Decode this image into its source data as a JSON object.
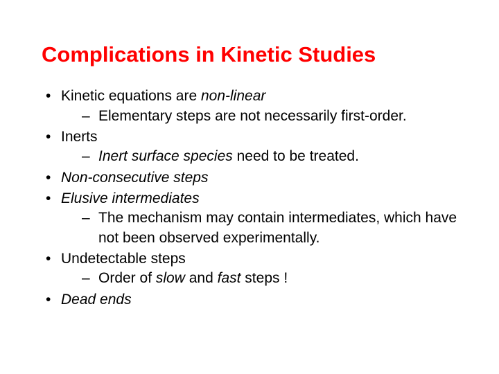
{
  "title_color": "#ff0000",
  "body_color": "#000000",
  "background_color": "#ffffff",
  "title_fontsize": 31,
  "body_fontsize": 21,
  "title": "Complications in Kinetic Studies",
  "bullets": {
    "b1_pre": "Kinetic equations are ",
    "b1_em": "non-linear",
    "b1_sub1": "Elementary steps are not necessarily first-order.",
    "b2": "Inerts",
    "b2_sub1_em": "Inert surface species",
    "b2_sub1_post": " need to be treated.",
    "b3_em": "Non-consecutive steps",
    "b4_em": "Elusive intermediates",
    "b4_sub1": "The mechanism may contain intermediates, which have not been observed experimentally.",
    "b5": "Undetectable steps",
    "b5_sub1_pre": "Order of ",
    "b5_sub1_em1": "slow",
    "b5_sub1_mid": " and ",
    "b5_sub1_em2": "fast",
    "b5_sub1_post": " steps !",
    "b6_em": "Dead ends"
  }
}
